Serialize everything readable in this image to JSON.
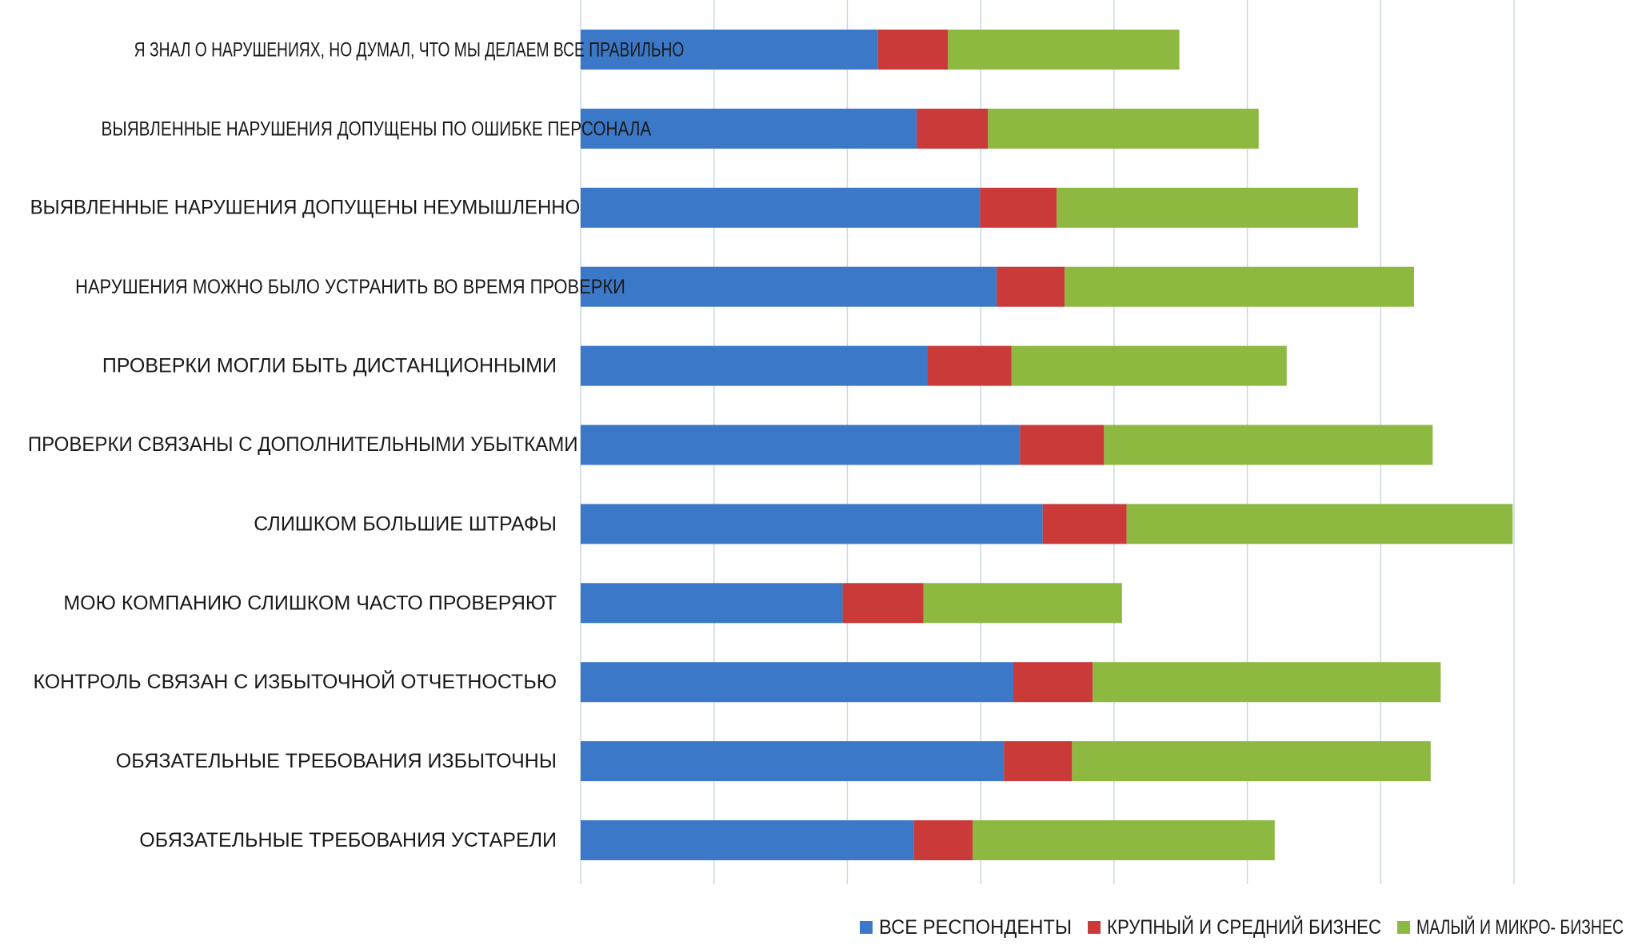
{
  "chart_data": {
    "type": "bar",
    "orientation": "horizontal",
    "stacked": true,
    "title": "",
    "xlabel": "",
    "ylabel": "",
    "xlim": [
      0,
      140
    ],
    "grid": true,
    "legend_position": "bottom-right",
    "categories": [
      "Я ЗНАЛ О НАРУШЕНИЯХ, НО ДУМАЛ, ЧТО МЫ ДЕЛАЕМ ВСЕ ПРАВИЛЬНО",
      "ВЫЯВЛЕННЫЕ НАРУШЕНИЯ ДОПУЩЕНЫ ПО ОШИБКЕ ПЕРСОНАЛА",
      "ВЫЯВЛЕННЫЕ НАРУШЕНИЯ ДОПУЩЕНЫ НЕУМЫШЛЕННО",
      "НАРУШЕНИЯ МОЖНО БЫЛО УСТРАНИТЬ ВО ВРЕМЯ ПРОВЕРКИ",
      "ПРОВЕРКИ МОГЛИ БЫТЬ ДИСТАНЦИОННЫМИ",
      "ПРОВЕРКИ СВЯЗАНЫ С ДОПОЛНИТЕЛЬНЫМИ  УБЫТКАМИ",
      "СЛИШКОМ БОЛЬШИЕ ШТРАФЫ",
      "МОЮ КОМПАНИЮ СЛИШКОМ ЧАСТО ПРОВЕРЯЮТ",
      "КОНТРОЛЬ СВЯЗАН С ИЗБЫТОЧНОЙ ОТЧЕТНОСТЬЮ",
      "ОБЯЗАТЕЛЬНЫЕ ТРЕБОВАНИЯ ИЗБЫТОЧНЫ",
      "ОБЯЗАТЕЛЬНЫЕ ТРЕБОВАНИЯ УСТАРЕЛИ"
    ],
    "series": [
      {
        "name": "ВСЕ РЕСПОНДЕНТЫ",
        "color": "#3b78c8",
        "values": [
          44.6,
          50.4,
          59.9,
          62.4,
          52.0,
          65.9,
          69.3,
          39.3,
          64.9,
          63.5,
          50.0
        ]
      },
      {
        "name": "КРУПНЫЙ И СРЕДНИЙ БИЗНЕС",
        "color": "#c93a38",
        "values": [
          10.5,
          10.7,
          11.5,
          10.2,
          12.6,
          12.6,
          12.6,
          12.1,
          11.9,
          10.2,
          8.8
        ]
      },
      {
        "name": "МАЛЫЙ И МИКРО- БИЗНЕС",
        "color": "#8db941",
        "values": [
          34.7,
          40.6,
          45.2,
          52.4,
          41.3,
          49.3,
          57.9,
          29.8,
          52.2,
          53.8,
          45.3
        ]
      }
    ]
  }
}
